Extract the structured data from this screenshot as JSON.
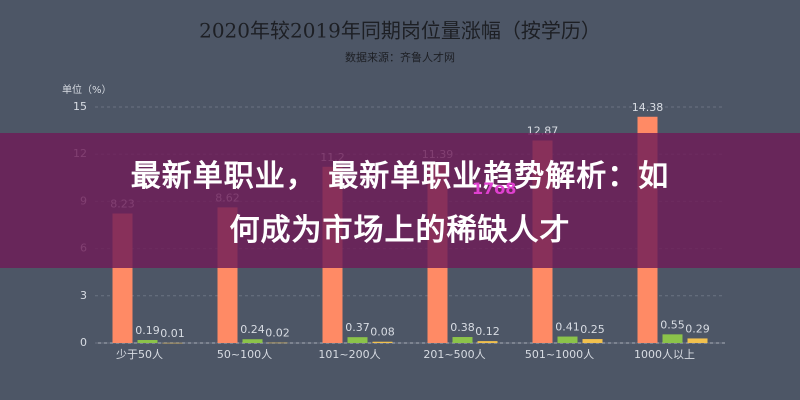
{
  "chart_data": {
    "type": "bar",
    "title": "2020年较2019年同期岗位量涨幅（按学历）",
    "subtitle": "数据来源：齐鲁人才网",
    "y_label": "单位（%）",
    "categories": [
      "少于50人",
      "50~100人",
      "101~200人",
      "201~500人",
      "501~1000人",
      "1000人以上"
    ],
    "series": [
      {
        "color": "#ff8a65",
        "values": [
          8.23,
          8.62,
          11.2,
          11.39,
          12.87,
          14.38
        ]
      },
      {
        "color": "#8bc34a",
        "values": [
          0.19,
          0.24,
          0.37,
          0.38,
          0.41,
          0.55
        ]
      },
      {
        "color": "#f2c14e",
        "values": [
          0.01,
          0.02,
          0.08,
          0.12,
          0.25,
          0.29
        ]
      }
    ],
    "ylim": [
      0,
      15
    ],
    "yticks": [
      0,
      3,
      6,
      9,
      12,
      15
    ],
    "grid": true
  },
  "banner": {
    "title_line1": "最新单职业， 最新单职业趋势解析：如",
    "title_line2": "何成为市场上的稀缺人才",
    "watermark": "17o8"
  }
}
